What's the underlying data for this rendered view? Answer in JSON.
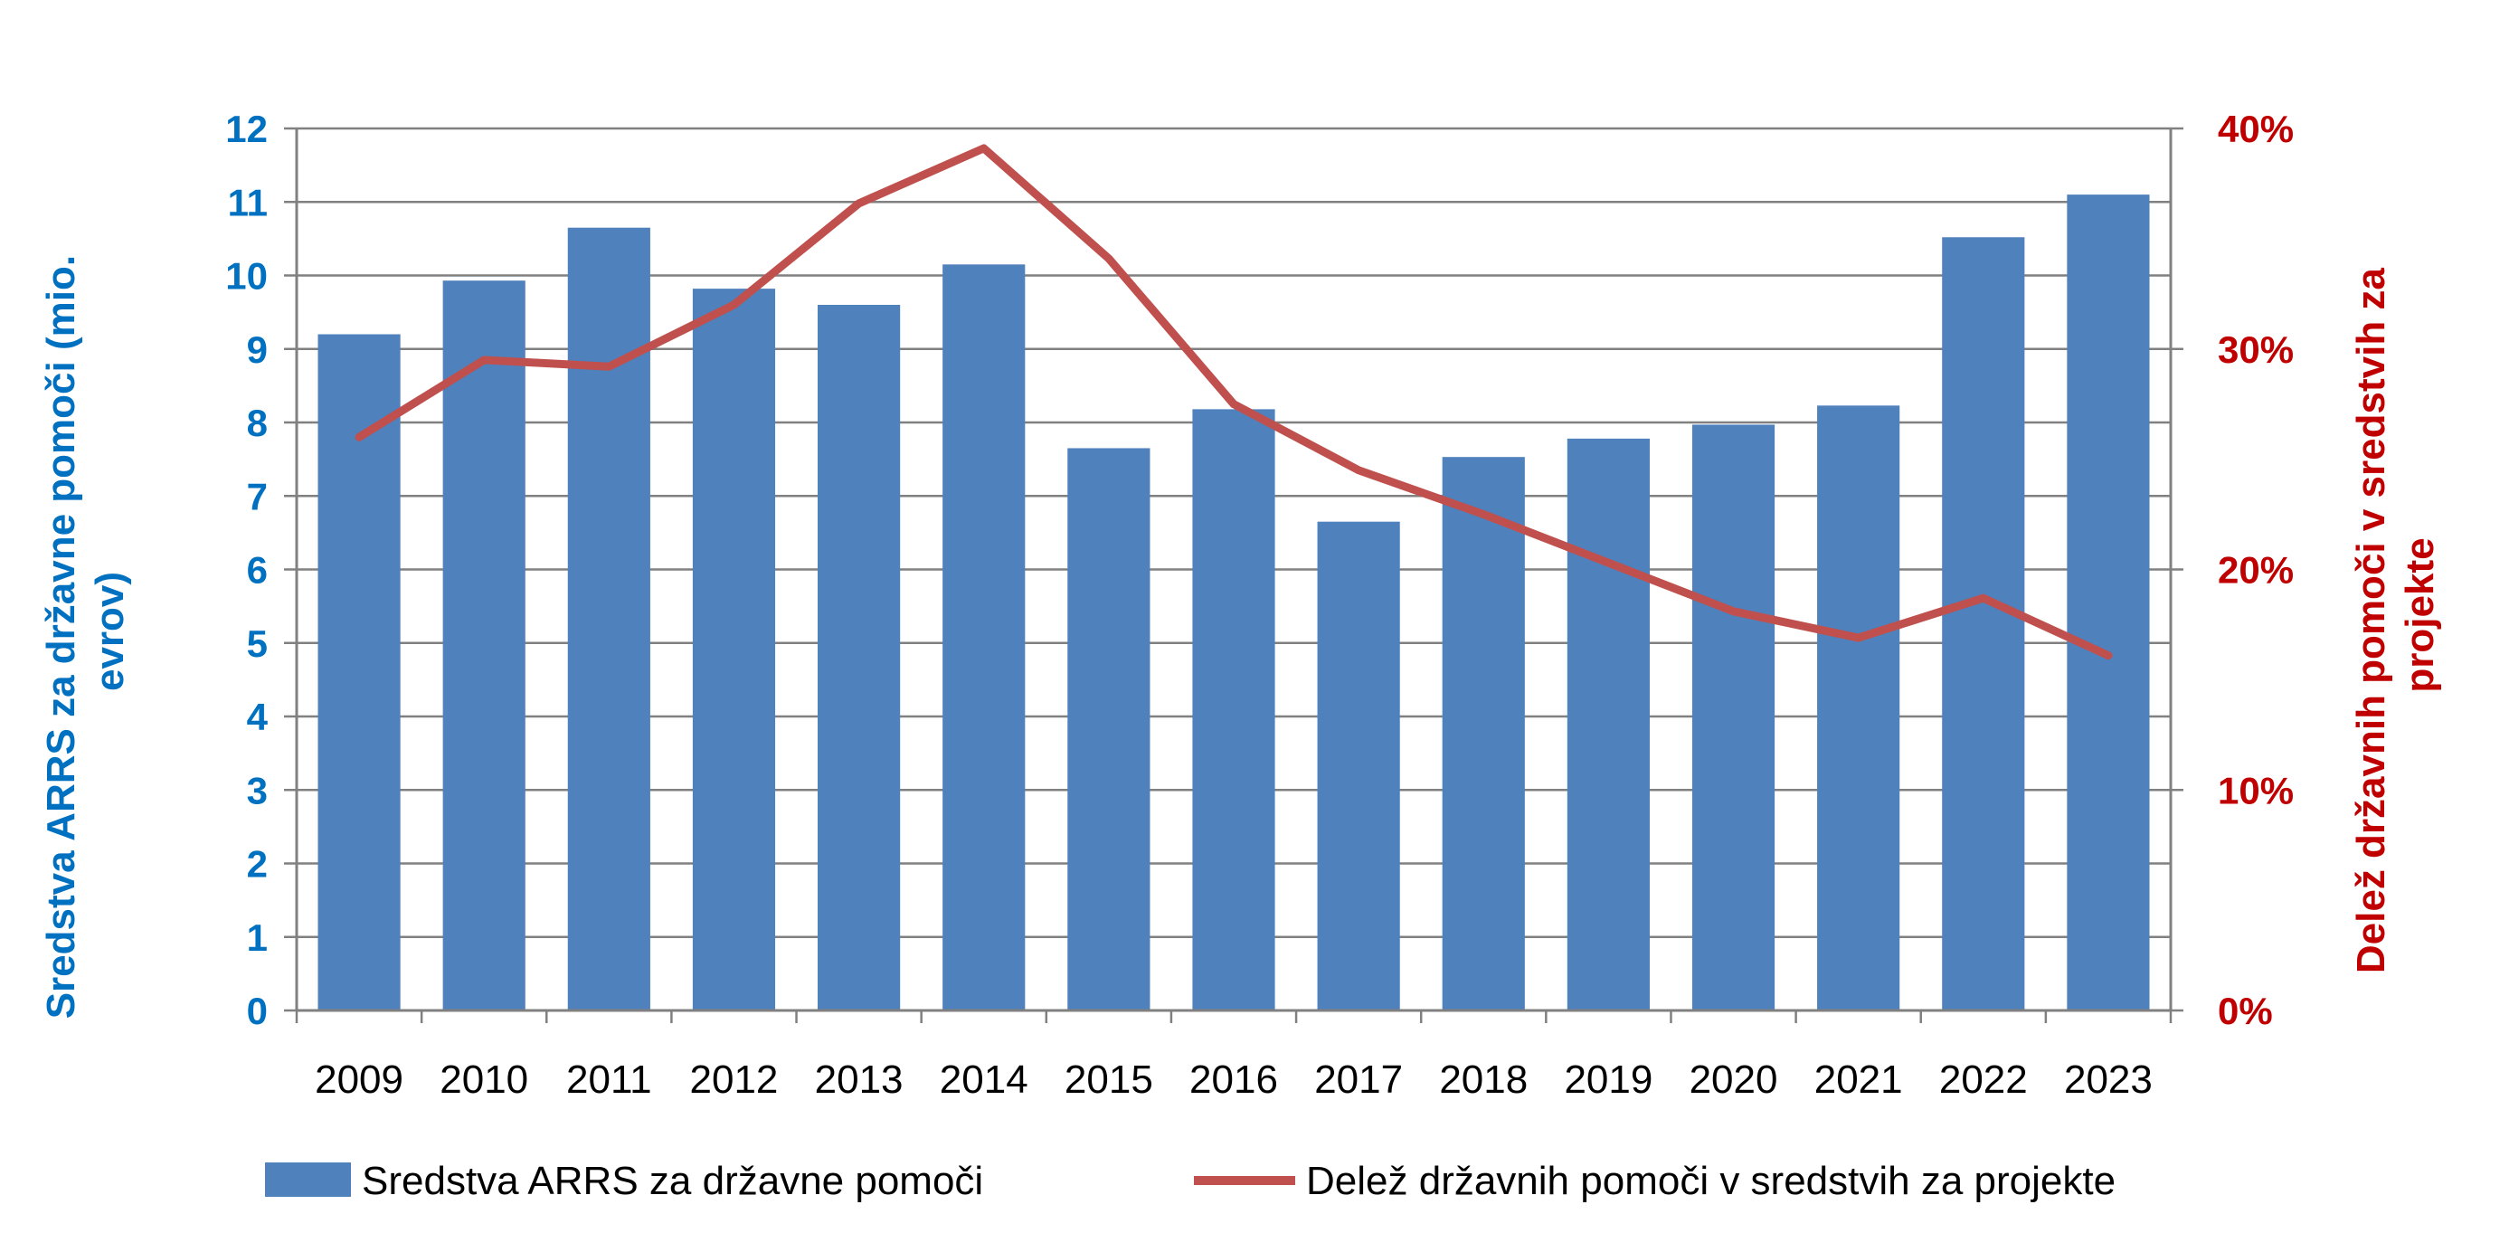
{
  "chart_data": {
    "type": "bar",
    "categories": [
      "2009",
      "2010",
      "2011",
      "2012",
      "2013",
      "2014",
      "2015",
      "2016",
      "2017",
      "2018",
      "2019",
      "2020",
      "2021",
      "2022",
      "2023"
    ],
    "series": [
      {
        "name": "Sredstva ARRS za državne pomoči",
        "type": "bar",
        "axis": "left",
        "values": [
          9.2,
          9.93,
          10.65,
          9.82,
          9.6,
          10.15,
          7.65,
          8.18,
          6.65,
          7.53,
          7.78,
          7.97,
          8.23,
          10.52,
          11.1
        ]
      },
      {
        "name": "Delež državnih pomoči v sredstvih za projekte",
        "type": "line",
        "axis": "right",
        "values": [
          0.26,
          0.295,
          0.292,
          0.32,
          0.366,
          0.391,
          0.341,
          0.275,
          0.245,
          0.225,
          0.203,
          0.181,
          0.169,
          0.187,
          0.161
        ]
      }
    ],
    "ylim_left": [
      0,
      12
    ],
    "ylim_right": [
      0,
      0.4
    ],
    "yticks_left": [
      "0",
      "1",
      "2",
      "3",
      "4",
      "5",
      "6",
      "7",
      "8",
      "9",
      "10",
      "11",
      "12"
    ],
    "yticks_right": [
      "0%",
      "10%",
      "20%",
      "30%",
      "40%"
    ],
    "ylabel_left_lines": [
      "Sredstva ARRS za državne pomoči (mio.",
      "evrov)"
    ],
    "ylabel_right_lines": [
      "Delež državnih pomoči v sredstvih za",
      "projekte"
    ],
    "grid": true,
    "legend_position": "bottom",
    "colors": {
      "bar": "#4f81bd",
      "line": "#c0504d",
      "left_axis": "#0070c0",
      "right_axis": "#c00000",
      "grid": "#808080"
    }
  }
}
